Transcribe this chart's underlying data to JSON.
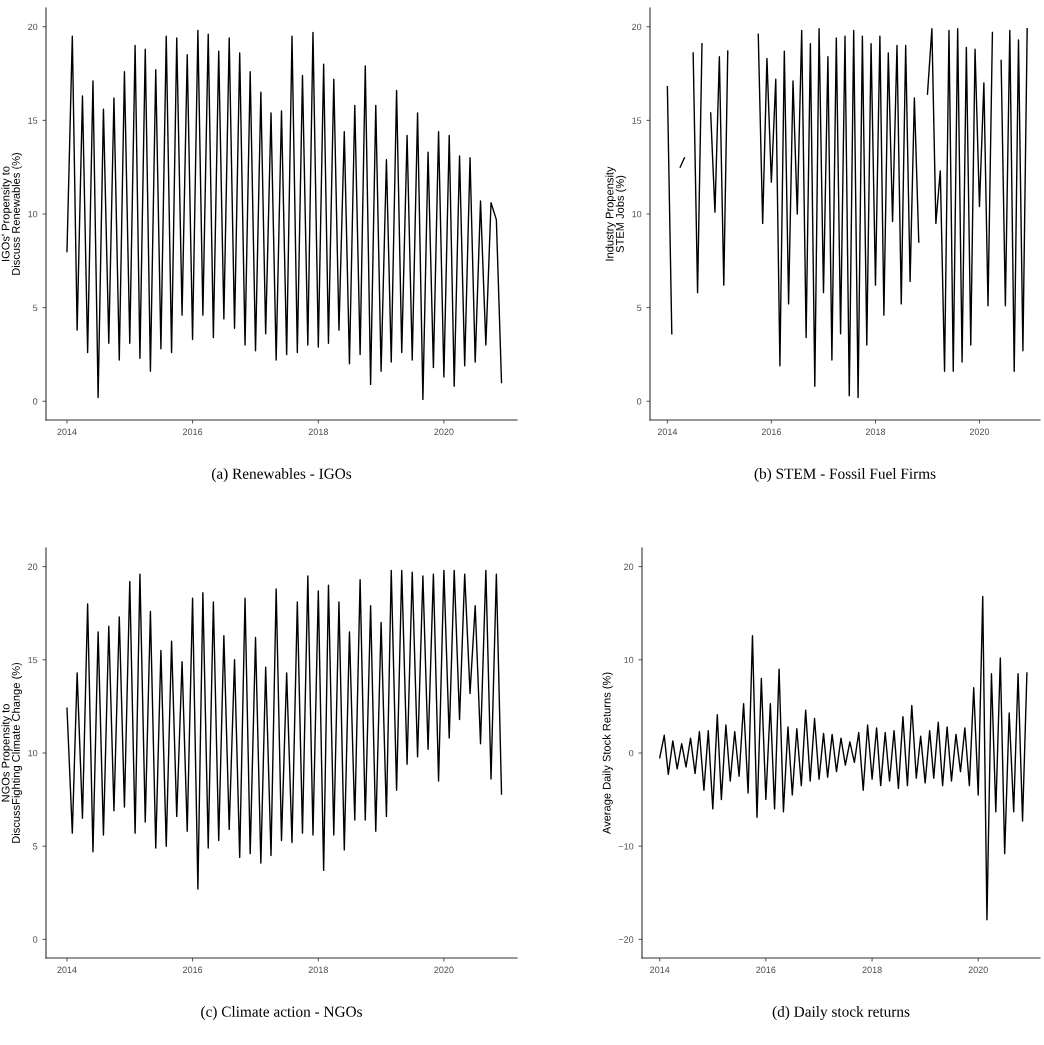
{
  "chart_data": [
    {
      "type": "line",
      "ylabel": "IGOs' Propensity to\nDiscuss Renewables (%)",
      "annotations": [
        "(a) Renewables - IGOs"
      ],
      "xlim": [
        "2013-09",
        "2021-03"
      ],
      "xticks": [
        "2014",
        "2016",
        "2018",
        "2020"
      ],
      "ylim": [
        -1,
        21
      ],
      "yticks": [
        0,
        5,
        10,
        15,
        20
      ],
      "grid": false,
      "line_style": "solid",
      "series": [
        {
          "color": "#000000",
          "x": [
            "2014-01",
            "2014-02",
            "2014-03",
            "2014-04",
            "2014-05",
            "2014-06",
            "2014-07",
            "2014-08",
            "2014-09",
            "2014-10",
            "2014-11",
            "2014-12",
            "2015-01",
            "2015-02",
            "2015-03",
            "2015-04",
            "2015-05",
            "2015-06",
            "2015-07",
            "2015-08",
            "2015-09",
            "2015-10",
            "2015-11",
            "2015-12",
            "2016-01",
            "2016-02",
            "2016-03",
            "2016-04",
            "2016-05",
            "2016-06",
            "2016-07",
            "2016-08",
            "2016-09",
            "2016-10",
            "2016-11",
            "2016-12",
            "2017-01",
            "2017-02",
            "2017-03",
            "2017-04",
            "2017-05",
            "2017-06",
            "2017-07",
            "2017-08",
            "2017-09",
            "2017-10",
            "2017-11",
            "2017-12",
            "2018-01",
            "2018-02",
            "2018-03",
            "2018-04",
            "2018-05",
            "2018-06",
            "2018-07",
            "2018-08",
            "2018-09",
            "2018-10",
            "2018-11",
            "2018-12",
            "2019-01",
            "2019-02",
            "2019-03",
            "2019-04",
            "2019-05",
            "2019-06",
            "2019-07",
            "2019-08",
            "2019-09",
            "2019-10",
            "2019-11",
            "2019-12",
            "2020-01",
            "2020-02",
            "2020-03",
            "2020-04",
            "2020-05",
            "2020-06",
            "2020-07",
            "2020-08",
            "2020-09",
            "2020-10",
            "2020-11",
            "2020-12"
          ],
          "values": [
            8,
            19.5,
            3.8,
            16.3,
            2.6,
            17.1,
            0.2,
            15.6,
            3.1,
            16.2,
            2.2,
            17.6,
            3.1,
            19.0,
            2.3,
            18.8,
            1.6,
            17.7,
            2.8,
            19.5,
            2.6,
            19.4,
            4.6,
            18.5,
            3.3,
            19.8,
            4.6,
            19.6,
            3.4,
            18.7,
            4.4,
            19.4,
            3.9,
            18.6,
            3.0,
            17.6,
            2.7,
            16.5,
            3.6,
            15.4,
            2.2,
            15.5,
            2.5,
            19.5,
            2.6,
            17.4,
            3.0,
            19.7,
            2.9,
            18.0,
            3.1,
            17.2,
            3.8,
            14.4,
            2.0,
            15.8,
            2.5,
            17.9,
            0.9,
            15.8,
            1.6,
            12.9,
            2.1,
            16.6,
            2.6,
            14.2,
            2.2,
            15.4,
            0.1,
            13.3,
            1.8,
            14.4,
            1.3,
            14.2,
            0.8,
            13.1,
            1.9,
            13.0,
            2.1,
            10.7,
            3.0,
            10.6,
            9.7,
            1.0
          ]
        }
      ]
    },
    {
      "type": "line",
      "ylabel": "Industry Propensity\nSTEM Jobs (%)",
      "annotations": [
        "(b) STEM - Fossil Fuel Firms"
      ],
      "xlim": [
        "2013-09",
        "2021-03"
      ],
      "xticks": [
        "2014",
        "2016",
        "2018",
        "2020"
      ],
      "ylim": [
        -1,
        21
      ],
      "yticks": [
        0,
        5,
        10,
        15,
        20
      ],
      "grid": false,
      "line_style": "solid",
      "series": [
        {
          "color": "#000000",
          "x": [
            "2014-01",
            "2014-02",
            "2014-03",
            "2014-04",
            "2014-05",
            "2014-06",
            "2014-07",
            "2014-08",
            "2014-09",
            "2014-10",
            "2014-11",
            "2014-12",
            "2015-01",
            "2015-02",
            "2015-03",
            "2015-04",
            "2015-05",
            "2015-06",
            "2015-07",
            "2015-08",
            "2015-09",
            "2015-10",
            "2015-11",
            "2015-12",
            "2016-01",
            "2016-02",
            "2016-03",
            "2016-04",
            "2016-05",
            "2016-06",
            "2016-07",
            "2016-08",
            "2016-09",
            "2016-10",
            "2016-11",
            "2016-12",
            "2017-01",
            "2017-02",
            "2017-03",
            "2017-04",
            "2017-05",
            "2017-06",
            "2017-07",
            "2017-08",
            "2017-09",
            "2017-10",
            "2017-11",
            "2017-12",
            "2018-01",
            "2018-02",
            "2018-03",
            "2018-04",
            "2018-05",
            "2018-06",
            "2018-07",
            "2018-08",
            "2018-09",
            "2018-10",
            "2018-11",
            "2018-12",
            "2019-01",
            "2019-02",
            "2019-03",
            "2019-04",
            "2019-05",
            "2019-06",
            "2019-07",
            "2019-08",
            "2019-09",
            "2019-10",
            "2019-11",
            "2019-12",
            "2020-01",
            "2020-02",
            "2020-03",
            "2020-04",
            "2020-05",
            "2020-06",
            "2020-07",
            "2020-08",
            "2020-09",
            "2020-10",
            "2020-11",
            "2020-12"
          ],
          "values": [
            16.8,
            3.6,
            null,
            12.5,
            13.0,
            null,
            18.6,
            5.8,
            19.1,
            null,
            15.4,
            10.1,
            18.4,
            6.2,
            18.7,
            null,
            null,
            null,
            null,
            null,
            null,
            19.6,
            9.5,
            18.3,
            11.7,
            17.2,
            1.9,
            18.7,
            5.2,
            17.1,
            10.0,
            19.8,
            3.4,
            19.1,
            0.8,
            19.9,
            5.8,
            18.4,
            2.2,
            19.4,
            3.6,
            19.5,
            0.3,
            19.8,
            0.2,
            19.5,
            3.0,
            19.1,
            6.2,
            19.5,
            4.6,
            18.6,
            9.6,
            19.0,
            5.2,
            19.0,
            6.4,
            16.2,
            8.5,
            null,
            16.4,
            19.9,
            9.5,
            12.3,
            1.6,
            19.8,
            1.6,
            19.9,
            2.1,
            18.9,
            3.0,
            18.8,
            10.4,
            17.0,
            5.1,
            19.7,
            null,
            18.2,
            5.1,
            19.8,
            1.6,
            19.3,
            2.7,
            19.9
          ]
        }
      ]
    },
    {
      "type": "line",
      "ylabel": "NGOs Propensity to\nDiscussFighting Climate Change (%)",
      "annotations": [
        "(c) Climate action - NGOs"
      ],
      "xlim": [
        "2013-09",
        "2021-03"
      ],
      "xticks": [
        "2014",
        "2016",
        "2018",
        "2020"
      ],
      "ylim": [
        -1,
        21
      ],
      "yticks": [
        0,
        5,
        10,
        15,
        20
      ],
      "grid": false,
      "line_style": "solid",
      "series": [
        {
          "color": "#000000",
          "x": [
            "2014-01",
            "2014-02",
            "2014-03",
            "2014-04",
            "2014-05",
            "2014-06",
            "2014-07",
            "2014-08",
            "2014-09",
            "2014-10",
            "2014-11",
            "2014-12",
            "2015-01",
            "2015-02",
            "2015-03",
            "2015-04",
            "2015-05",
            "2015-06",
            "2015-07",
            "2015-08",
            "2015-09",
            "2015-10",
            "2015-11",
            "2015-12",
            "2016-01",
            "2016-02",
            "2016-03",
            "2016-04",
            "2016-05",
            "2016-06",
            "2016-07",
            "2016-08",
            "2016-09",
            "2016-10",
            "2016-11",
            "2016-12",
            "2017-01",
            "2017-02",
            "2017-03",
            "2017-04",
            "2017-05",
            "2017-06",
            "2017-07",
            "2017-08",
            "2017-09",
            "2017-10",
            "2017-11",
            "2017-12",
            "2018-01",
            "2018-02",
            "2018-03",
            "2018-04",
            "2018-05",
            "2018-06",
            "2018-07",
            "2018-08",
            "2018-09",
            "2018-10",
            "2018-11",
            "2018-12",
            "2019-01",
            "2019-02",
            "2019-03",
            "2019-04",
            "2019-05",
            "2019-06",
            "2019-07",
            "2019-08",
            "2019-09",
            "2019-10",
            "2019-11",
            "2019-12",
            "2020-01",
            "2020-02",
            "2020-03",
            "2020-04",
            "2020-05",
            "2020-06",
            "2020-07",
            "2020-08",
            "2020-09",
            "2020-10",
            "2020-11",
            "2020-12"
          ],
          "values": [
            12.4,
            5.7,
            14.3,
            6.5,
            18.0,
            4.7,
            16.5,
            5.6,
            16.8,
            6.9,
            17.3,
            7.1,
            19.2,
            5.7,
            19.6,
            6.3,
            17.6,
            4.9,
            15.5,
            5.0,
            16.0,
            6.6,
            14.9,
            5.8,
            18.3,
            2.7,
            18.6,
            4.9,
            18.1,
            5.3,
            16.3,
            5.9,
            15.0,
            4.4,
            18.3,
            4.6,
            16.2,
            4.1,
            14.6,
            4.5,
            18.8,
            5.3,
            14.3,
            5.2,
            18.1,
            5.7,
            19.5,
            5.6,
            18.7,
            3.7,
            19.0,
            5.6,
            18.1,
            4.8,
            16.5,
            6.4,
            19.3,
            6.4,
            17.9,
            5.8,
            17.0,
            6.6,
            19.8,
            8.0,
            19.8,
            9.4,
            19.7,
            9.8,
            19.5,
            10.2,
            19.6,
            8.5,
            19.8,
            10.8,
            19.8,
            11.8,
            19.6,
            13.2,
            17.9,
            10.5,
            19.8,
            8.6,
            19.6,
            7.8
          ]
        }
      ]
    },
    {
      "type": "line",
      "ylabel": "Average Daily Stock Returns (%)",
      "annotations": [
        "(d) Daily stock returns"
      ],
      "xlim": [
        "2013-09",
        "2021-03"
      ],
      "xticks": [
        "2014",
        "2016",
        "2018",
        "2020"
      ],
      "ylim": [
        -22,
        22
      ],
      "yticks": [
        {
          "value": -20,
          "label": "−20"
        },
        {
          "value": -10,
          "label": "−10"
        },
        0,
        10,
        20
      ],
      "grid": false,
      "line_style": "solid",
      "series": [
        {
          "color": "#000000",
          "x": [
            "2014-01",
            "2014-02",
            "2014-03",
            "2014-04",
            "2014-05",
            "2014-06",
            "2014-07",
            "2014-08",
            "2014-09",
            "2014-10",
            "2014-11",
            "2014-12",
            "2015-01",
            "2015-02",
            "2015-03",
            "2015-04",
            "2015-05",
            "2015-06",
            "2015-07",
            "2015-08",
            "2015-09",
            "2015-10",
            "2015-11",
            "2015-12",
            "2016-01",
            "2016-02",
            "2016-03",
            "2016-04",
            "2016-05",
            "2016-06",
            "2016-07",
            "2016-08",
            "2016-09",
            "2016-10",
            "2016-11",
            "2016-12",
            "2017-01",
            "2017-02",
            "2017-03",
            "2017-04",
            "2017-05",
            "2017-06",
            "2017-07",
            "2017-08",
            "2017-09",
            "2017-10",
            "2017-11",
            "2017-12",
            "2018-01",
            "2018-02",
            "2018-03",
            "2018-04",
            "2018-05",
            "2018-06",
            "2018-07",
            "2018-08",
            "2018-09",
            "2018-10",
            "2018-11",
            "2018-12",
            "2019-01",
            "2019-02",
            "2019-03",
            "2019-04",
            "2019-05",
            "2019-06",
            "2019-07",
            "2019-08",
            "2019-09",
            "2019-10",
            "2019-11",
            "2019-12",
            "2020-01",
            "2020-02",
            "2020-03",
            "2020-04",
            "2020-05",
            "2020-06",
            "2020-07",
            "2020-08",
            "2020-09",
            "2020-10",
            "2020-11",
            "2020-12"
          ],
          "values": [
            -0.5,
            1.9,
            -2.3,
            1.3,
            -1.7,
            1.0,
            -1.5,
            1.6,
            -2.2,
            2.3,
            -4.0,
            2.4,
            -6.0,
            4.1,
            -5.0,
            3.0,
            -3.0,
            2.3,
            -2.5,
            5.3,
            -4.3,
            12.6,
            -6.9,
            8.0,
            -5.0,
            5.3,
            -6.0,
            9.0,
            -6.3,
            2.8,
            -4.5,
            2.6,
            -3.5,
            4.6,
            -3.0,
            3.7,
            -2.8,
            2.1,
            -2.6,
            2.0,
            -2.0,
            1.6,
            -1.3,
            1.2,
            -1.0,
            2.2,
            -4.0,
            3.0,
            -2.8,
            2.7,
            -3.5,
            2.2,
            -3.0,
            2.4,
            -3.8,
            3.9,
            -3.5,
            5.1,
            -2.7,
            1.8,
            -3.2,
            2.4,
            -2.7,
            3.3,
            -3.5,
            2.8,
            -3.0,
            2.0,
            -2.0,
            2.7,
            -3.5,
            7.0,
            -4.5,
            16.8,
            -17.9,
            8.5,
            -6.3,
            10.2,
            -10.8,
            4.3,
            -6.3,
            8.5,
            -7.3,
            8.6
          ]
        }
      ]
    }
  ]
}
